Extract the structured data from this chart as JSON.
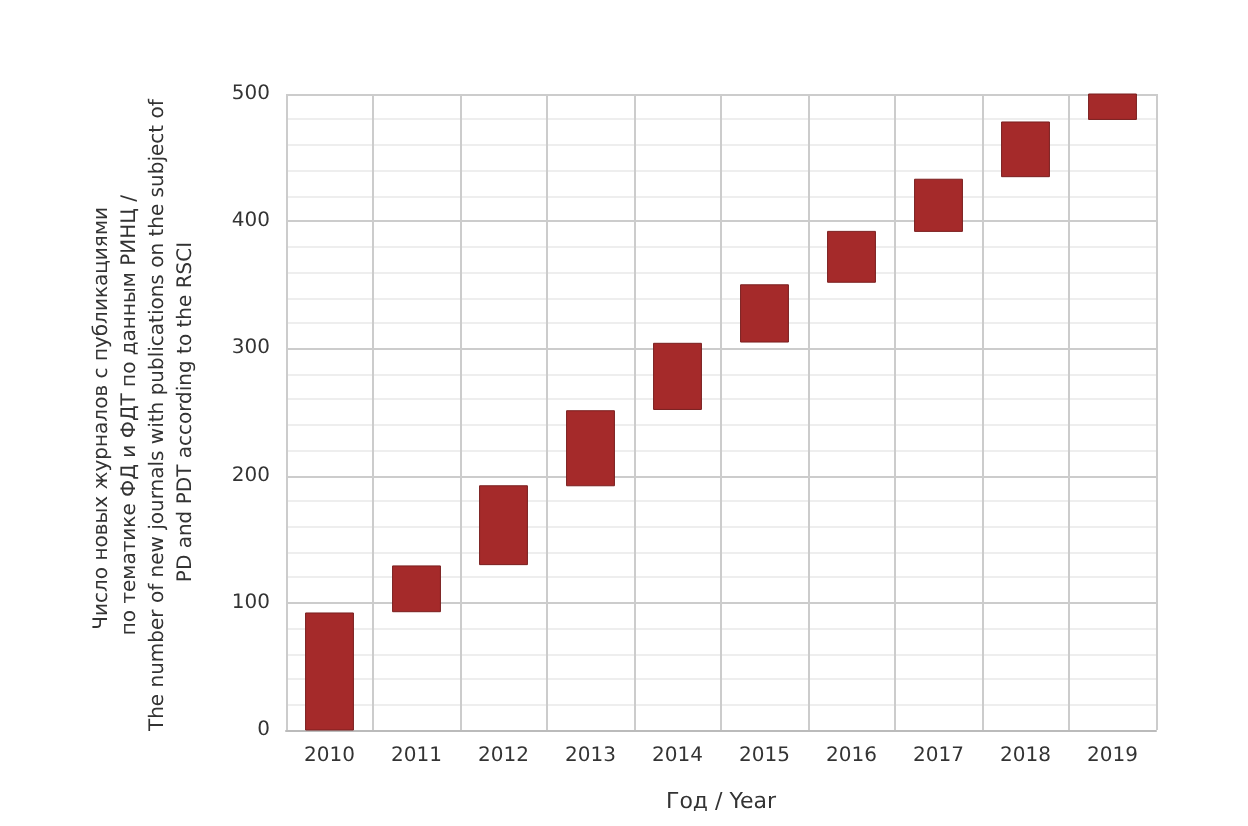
{
  "chart_data": {
    "type": "bar",
    "xlabel": "Год / Year",
    "ylabel": "Число новых журналов с публикациями  по тематике ФД и ФДТ по данным РИНЦ / The number of new journals with publications on the subject of PD and PDT according to the RSCI",
    "categories": [
      "2010",
      "2011",
      "2012",
      "2013",
      "2014",
      "2015",
      "2016",
      "2017",
      "2018",
      "2019"
    ],
    "base": [
      0,
      93,
      130,
      192,
      252,
      305,
      352,
      392,
      435,
      480
    ],
    "values": [
      92,
      36,
      62,
      59,
      52,
      45,
      40,
      41,
      43,
      20
    ],
    "color": "#a52a2a",
    "ylim": [
      0,
      500
    ],
    "yticks": [
      0,
      100,
      200,
      300,
      400,
      500
    ],
    "grid": true
  }
}
